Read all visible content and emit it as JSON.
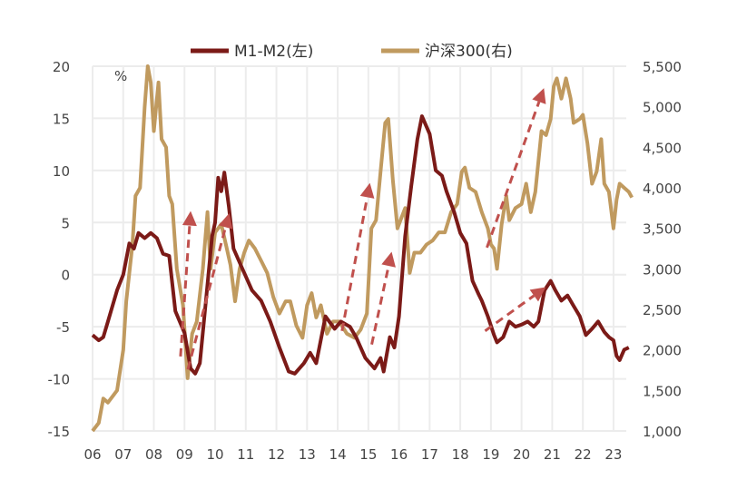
{
  "chart_data": {
    "type": "line",
    "title": "",
    "legend": {
      "placement": "top-center"
    },
    "grid": true,
    "left_axis": {
      "unit_label": "%",
      "ylim": [
        -15,
        20
      ],
      "ticks": [
        "20",
        "15",
        "10",
        "5",
        "0",
        "-5",
        "-10",
        "-15"
      ],
      "tick_values": [
        20,
        15,
        10,
        5,
        0,
        -5,
        -10,
        -15
      ]
    },
    "right_axis": {
      "ylim": [
        1000,
        5500
      ],
      "ticks": [
        "5,500",
        "5,000",
        "4,500",
        "4,000",
        "3,500",
        "3,000",
        "2,500",
        "2,000",
        "1,500",
        "1,000"
      ],
      "tick_values": [
        5500,
        5000,
        4500,
        4000,
        3500,
        3000,
        2500,
        2000,
        1500,
        1000
      ]
    },
    "x_axis": {
      "xlim": [
        2006,
        2023.7
      ],
      "ticks": [
        "06",
        "07",
        "08",
        "09",
        "10",
        "11",
        "12",
        "13",
        "14",
        "15",
        "16",
        "17",
        "18",
        "19",
        "20",
        "21",
        "22",
        "23"
      ],
      "tick_values": [
        2006,
        2007,
        2008,
        2009,
        2010,
        2011,
        2012,
        2013,
        2014,
        2015,
        2016,
        2017,
        2018,
        2019,
        2020,
        2021,
        2022,
        2023
      ]
    },
    "series": [
      {
        "name": "M1-M2(左)",
        "axis": "left",
        "color": "#7b1a17",
        "x": [
          2006.0,
          2006.2,
          2006.35,
          2006.5,
          2006.8,
          2007.0,
          2007.2,
          2007.35,
          2007.5,
          2007.7,
          2007.9,
          2008.1,
          2008.3,
          2008.5,
          2008.7,
          2009.0,
          2009.2,
          2009.35,
          2009.5,
          2009.7,
          2009.9,
          2010.0,
          2010.1,
          2010.2,
          2010.3,
          2010.45,
          2010.6,
          2010.9,
          2011.2,
          2011.5,
          2011.8,
          2012.1,
          2012.4,
          2012.6,
          2012.9,
          2013.1,
          2013.3,
          2013.6,
          2013.9,
          2014.1,
          2014.4,
          2014.6,
          2014.9,
          2015.2,
          2015.4,
          2015.5,
          2015.7,
          2015.85,
          2016.0,
          2016.2,
          2016.4,
          2016.6,
          2016.75,
          2017.0,
          2017.2,
          2017.4,
          2017.55,
          2017.8,
          2018.0,
          2018.2,
          2018.4,
          2018.6,
          2018.7,
          2018.9,
          2019.1,
          2019.2,
          2019.4,
          2019.6,
          2019.8,
          2020.0,
          2020.2,
          2020.4,
          2020.55,
          2020.75,
          2020.95,
          2021.1,
          2021.3,
          2021.5,
          2021.7,
          2021.9,
          2022.1,
          2022.3,
          2022.5,
          2022.7,
          2022.85,
          2023.0,
          2023.1,
          2023.2,
          2023.35,
          2023.5
        ],
        "y": [
          -5.8,
          -6.3,
          -6.0,
          -4.5,
          -1.5,
          0,
          3,
          2.5,
          4,
          3.5,
          4,
          3.5,
          2,
          1.8,
          -3.5,
          -5.6,
          -9,
          -9.5,
          -8.5,
          -2.5,
          3.7,
          5,
          9.3,
          8,
          9.8,
          6.5,
          2.5,
          0.5,
          -1.5,
          -2.5,
          -4.5,
          -7,
          -9.3,
          -9.5,
          -8.5,
          -7.5,
          -8.5,
          -4,
          -5.2,
          -4.5,
          -5,
          -6,
          -8,
          -9,
          -8,
          -9.3,
          -6,
          -7,
          -4,
          3.7,
          8.5,
          13,
          15.2,
          13.5,
          10,
          9.5,
          8,
          6,
          4,
          3,
          -0.6,
          -1.9,
          -2.5,
          -4,
          -5.8,
          -6.5,
          -6,
          -4.5,
          -5,
          -4.8,
          -4.5,
          -5,
          -4.5,
          -1.5,
          -0.6,
          -1.5,
          -2.5,
          -2,
          -3,
          -4,
          -5.8,
          -5.2,
          -4.5,
          -5.5,
          -6,
          -6.3,
          -7.8,
          -8.2,
          -7.2,
          -7
        ]
      },
      {
        "name": "沪深300(右)",
        "axis": "right",
        "color": "#c09a5f",
        "x": [
          2006.0,
          2006.2,
          2006.35,
          2006.5,
          2006.8,
          2007.0,
          2007.1,
          2007.3,
          2007.4,
          2007.55,
          2007.7,
          2007.8,
          2007.9,
          2008.0,
          2008.15,
          2008.25,
          2008.4,
          2008.5,
          2008.6,
          2008.75,
          2008.95,
          2009.1,
          2009.25,
          2009.4,
          2009.6,
          2009.75,
          2009.85,
          2010.0,
          2010.2,
          2010.35,
          2010.5,
          2010.65,
          2010.8,
          2010.95,
          2011.1,
          2011.3,
          2011.5,
          2011.7,
          2011.9,
          2012.1,
          2012.3,
          2012.45,
          2012.65,
          2012.85,
          2013.0,
          2013.15,
          2013.3,
          2013.45,
          2013.65,
          2013.85,
          2014.05,
          2014.3,
          2014.55,
          2014.75,
          2014.95,
          2015.1,
          2015.25,
          2015.4,
          2015.55,
          2015.65,
          2015.8,
          2015.95,
          2016.05,
          2016.2,
          2016.35,
          2016.5,
          2016.7,
          2016.9,
          2017.1,
          2017.3,
          2017.5,
          2017.7,
          2017.9,
          2018.05,
          2018.15,
          2018.3,
          2018.5,
          2018.7,
          2018.9,
          2019.0,
          2019.1,
          2019.2,
          2019.35,
          2019.5,
          2019.6,
          2019.8,
          2020.0,
          2020.15,
          2020.3,
          2020.45,
          2020.65,
          2020.8,
          2020.95,
          2021.05,
          2021.15,
          2021.3,
          2021.45,
          2021.6,
          2021.7,
          2021.9,
          2022.0,
          2022.15,
          2022.3,
          2022.45,
          2022.6,
          2022.7,
          2022.85,
          2023.0,
          2023.1,
          2023.2,
          2023.35,
          2023.5,
          2023.6
        ],
        "y": [
          1000,
          1100,
          1400,
          1350,
          1500,
          2000,
          2600,
          3300,
          3900,
          4000,
          5000,
          5500,
          5300,
          4700,
          5300,
          4600,
          4500,
          3900,
          3800,
          3000,
          2550,
          1650,
          2200,
          2350,
          3000,
          3700,
          3000,
          3450,
          3550,
          3300,
          3050,
          2600,
          3000,
          3200,
          3350,
          3250,
          3100,
          2950,
          2650,
          2450,
          2600,
          2600,
          2300,
          2150,
          2550,
          2700,
          2400,
          2550,
          2200,
          2350,
          2350,
          2200,
          2150,
          2250,
          2450,
          3500,
          3600,
          4200,
          4800,
          4850,
          4100,
          3500,
          3600,
          3750,
          2950,
          3200,
          3200,
          3300,
          3350,
          3450,
          3450,
          3700,
          3800,
          4200,
          4250,
          4000,
          3950,
          3700,
          3500,
          3300,
          3250,
          3000,
          3550,
          3900,
          3600,
          3750,
          3800,
          4050,
          3700,
          3950,
          4700,
          4650,
          4850,
          5250,
          5350,
          5100,
          5350,
          5100,
          4800,
          4850,
          4900,
          4550,
          4050,
          4200,
          4600,
          4050,
          3950,
          3500,
          3850,
          4050,
          4000,
          3950,
          3880
        ]
      }
    ],
    "annotations": {
      "type": "dashed-arrow",
      "axis": "left",
      "color": "#c0504d",
      "arrows": [
        {
          "from": [
            2008.87,
            -7.85
          ],
          "to": [
            2009.2,
            6.1
          ]
        },
        {
          "from": [
            2009.11,
            -9.1
          ],
          "to": [
            2010.46,
            5.9
          ]
        },
        {
          "from": [
            2014.14,
            -5.4
          ],
          "to": [
            2015.05,
            8.8
          ]
        },
        {
          "from": [
            2015.11,
            -6.7
          ],
          "to": [
            2015.76,
            2.2
          ]
        },
        {
          "from": [
            2018.87,
            2.6
          ],
          "to": [
            2020.73,
            17.9
          ]
        },
        {
          "from": [
            2018.81,
            -5.4
          ],
          "to": [
            2020.79,
            -1.2
          ]
        }
      ]
    }
  }
}
